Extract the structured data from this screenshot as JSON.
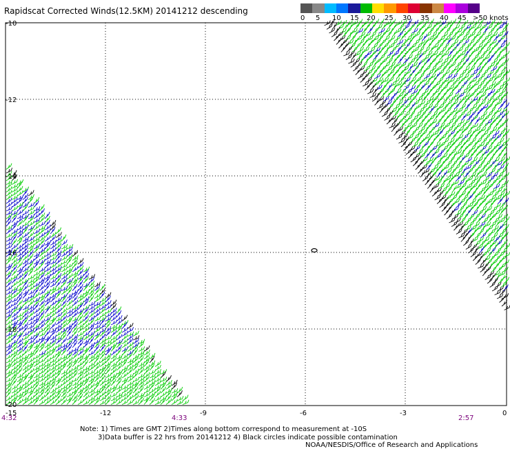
{
  "title": "Rapidscat Corrected Winds(12.5KM) 20141212 descending",
  "legend": {
    "labels": [
      "0",
      "5",
      "10",
      "15",
      "20",
      "25",
      "30",
      "35",
      "40",
      "45",
      ">50 knots"
    ],
    "colors": [
      "#555555",
      "#888888",
      "#00bbff",
      "#0077ff",
      "#1a1a9a",
      "#00bb00",
      "#ffdd00",
      "#ff9900",
      "#ff4400",
      "#dd0033",
      "#883300",
      "#cc8844",
      "#ff00ff",
      "#aa00dd",
      "#550088"
    ]
  },
  "map": {
    "lon_labels": [
      "-15",
      "-12",
      "-9",
      "-6",
      "-3",
      "0"
    ],
    "lat_labels": [
      "-10",
      "-12",
      "-14",
      "-16",
      "-18",
      "-20"
    ],
    "time_labels": {
      "left": "4:32",
      "mid": "4:33",
      "right": "2:57"
    },
    "lon_range": [
      -15,
      0
    ],
    "lat_range": [
      -20,
      -10
    ]
  },
  "notes": {
    "line1": "Note: 1) Times are GMT 2)Times along bottom correspond to measurement at -10S",
    "line2": "3)Data buffer is 22 hrs from 20141212 4) Black circles indicate possible contamination",
    "line3": "NOAA/NESDIS/Office of Research and Applications"
  },
  "wind_colors": {
    "green": "#00cc00",
    "blue": "#0000cc",
    "black": "#000000"
  }
}
